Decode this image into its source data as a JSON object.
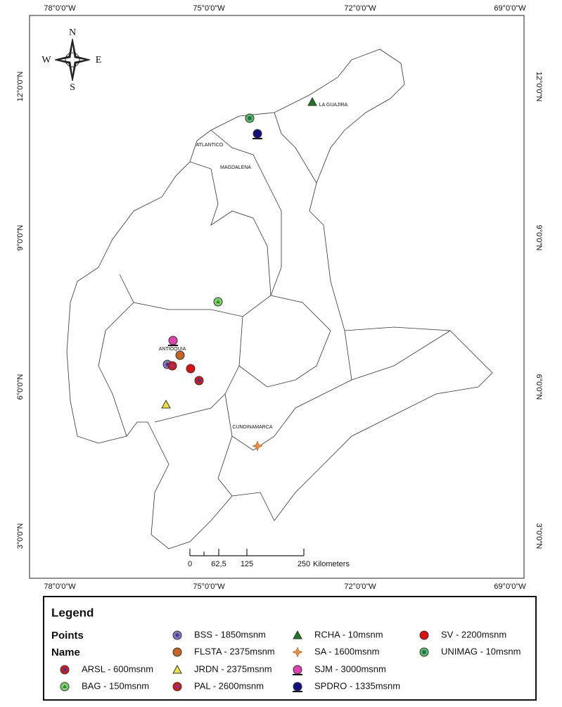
{
  "map": {
    "lon_labels": [
      "78°0'0\"W",
      "75°0'0\"W",
      "72°0'0\"W",
      "69°0'0\"W"
    ],
    "lat_labels": [
      "12°0'0\"N",
      "9°0'0\"N",
      "6°0'0\"N",
      "3°0'0\"N"
    ],
    "compass": {
      "n": "N",
      "s": "S",
      "e": "E",
      "w": "W"
    },
    "regions": [
      "LA GUAJIRA",
      "ATLANTICO",
      "MAGDALENA",
      "ANTIOQUIA",
      "CUNDINAMARCA"
    ],
    "scale_bar": {
      "ticks": [
        "0",
        "62,5",
        "125",
        "250"
      ],
      "unit": "Kilometers"
    }
  },
  "legend": {
    "title": "Legend",
    "group": "Points",
    "field": "Name",
    "items": [
      "ARSL - 600msnm",
      "BAG - 150msnm",
      "BSS - 1850msnm",
      "FLSTA - 2375msnm",
      "JRDN - 2375msnm",
      "PAL - 2600msnm",
      "RCHA - 10msnm",
      "SA - 1600msnm",
      "SJM - 3000msnm",
      "SPDRO - 1335msnm",
      "SV - 2200msnm",
      "UNIMAG - 10msnm"
    ]
  }
}
